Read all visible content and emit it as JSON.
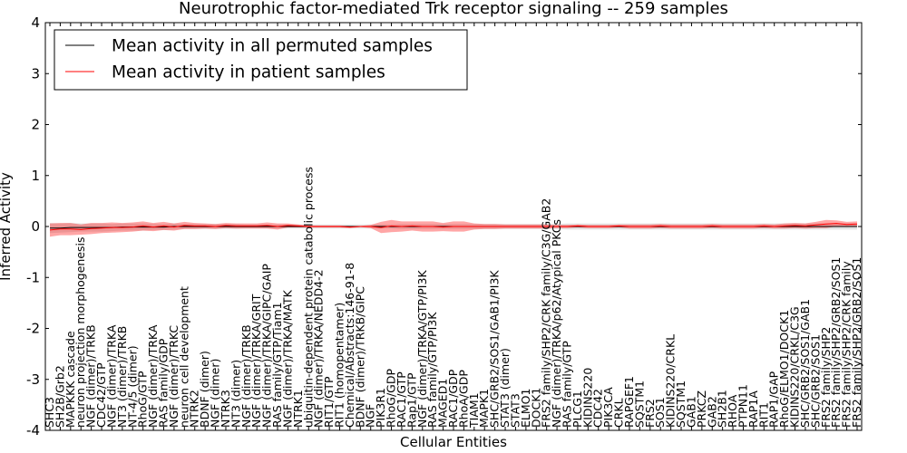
{
  "chart_data": {
    "type": "line",
    "title": "Neurotrophic factor-mediated Trk receptor signaling -- 259 samples",
    "xlabel": "Cellular Entities",
    "ylabel": "Inferred Activity",
    "ylim": [
      -4,
      4
    ],
    "yticks": [
      4,
      3,
      2,
      1,
      0,
      -1,
      -2,
      -3,
      -4
    ],
    "legend_position": "upper-left",
    "grid": false,
    "categories": [
      "SHC3",
      "SH2B/Grb2",
      "MAPKKK cascade",
      "neuron projection morphogenesis",
      "NGF (dimer)/TRKB",
      "CDC42/GTP",
      "NGF (dimer)/TRKA",
      "NT3 (dimer)/TRKB",
      "NT-4/5 (dimer)",
      "RhoG/GTP",
      "NGF (dimer)/TRKA",
      "RAS family/GDP",
      "NGF (dimer)/TRKC",
      "neuron cell development",
      "NTRK2",
      "BDNF (dimer)",
      "NGF (dimer)",
      "NTRK3",
      "NT3 (dimer)",
      "NGF (dimer)/TRKB",
      "NGF (dimer)/TRKA/GRIT",
      "NGF (dimer)/TRKA/GIPC/GAIP",
      "RAS family/GTP/Tiam1",
      "NGF (dimer)/TRKA/MATK",
      "NTRK1",
      "ubiquitin-dependent protein catabolic process",
      "NGF (dimer)/TRKA/NEDD4-2",
      "RIT1/GTP",
      "RIT1 (homopentamer)",
      "Chemical/Abstracts:146-91-8",
      "BDNF (dimer)/TRKB/GIPC",
      "NGF",
      "PIK3R1",
      "RhoG/GDP",
      "RAC1/GTP",
      "Rap1/GTP",
      "NGF (dimer)/TRKA/GTP/PI3K",
      "RAS family/GTP/PI3K",
      "MAGED1",
      "RAC1/GDP",
      "RhoA/GDP",
      "TIAM1",
      "MAPK1",
      "SHC/GRB2/SOS1/GAB1/PI3K",
      "STAT3 (dimer)",
      "STAT3",
      "ELMO1",
      "DOCK1",
      "FRS2 family/SHP2/CRK family/C3G/GAB2",
      "NGF (dimer)/TRKA/p62/Atypical PKCs",
      "RAS family/GTP",
      "PLCG1",
      "KIDINS220",
      "CDC42",
      "PIK3CA",
      "CRKL",
      "RAPGEF1",
      "SQSTM1",
      "FRS2",
      "SOS1",
      "KIDINS220/CRKL",
      "SQSTM1",
      "GAB1",
      "PRKCZ",
      "GAB2",
      "SH2B1",
      "RHOA",
      "PTPN11",
      "RAP1A",
      "RIT1",
      "RAP1/GAP",
      "RhoG/ELMO1/DOCK1",
      "KIDINS220/CRKL/C3G",
      "SHC/GRB2/SOS1/GAB1",
      "SHC/GRB2/SOS1",
      "FRS2 family/SHP2",
      "FRS2 family/SHP2/GRB2/SOS1",
      "FRS2 family/SHP2/CRK family",
      "FRS2 family/SHP2/GRB2/SOS1"
    ],
    "series": [
      {
        "name": "Mean activity in all permuted samples",
        "color": "#000000",
        "values": [
          -0.03,
          -0.03,
          -0.02,
          -0.02,
          -0.02,
          -0.02,
          -0.02,
          -0.01,
          -0.01,
          -0.01,
          -0.01,
          -0.01,
          0.0,
          0.0,
          0.0,
          0.0,
          0.0,
          0.0,
          0.0,
          0.0,
          0.0,
          0.0,
          0.0,
          0.0,
          0.0,
          0.0,
          0.0,
          0.0,
          0.0,
          0.0,
          0.0,
          0.0,
          0.0,
          0.0,
          0.0,
          0.0,
          0.0,
          0.0,
          0.0,
          0.0,
          0.0,
          0.0,
          0.0,
          0.0,
          0.0,
          0.0,
          0.0,
          0.0,
          0.0,
          0.0,
          0.0,
          0.0,
          0.0,
          0.0,
          0.0,
          0.0,
          0.0,
          0.0,
          0.0,
          0.0,
          0.0,
          0.0,
          0.0,
          0.0,
          0.0,
          0.0,
          0.0,
          0.0,
          0.0,
          0.0,
          0.0,
          0.0,
          0.0,
          0.0,
          0.0,
          0.0,
          0.0,
          0.0,
          0.0
        ],
        "band": [
          0.1,
          0.09,
          0.09,
          0.08,
          0.08,
          0.08,
          0.07,
          0.07,
          0.07,
          0.07,
          0.06,
          0.06,
          0.06,
          0.05,
          0.05,
          0.05,
          0.05,
          0.05,
          0.05,
          0.04,
          0.04,
          0.04,
          0.04,
          0.04,
          0.04,
          0.04,
          0.04,
          0.04,
          0.04,
          0.04,
          0.04,
          0.04,
          0.04,
          0.04,
          0.05,
          0.05,
          0.05,
          0.05,
          0.05,
          0.05,
          0.05,
          0.05,
          0.05,
          0.05,
          0.05,
          0.05,
          0.05,
          0.05,
          0.05,
          0.05,
          0.06,
          0.06,
          0.06,
          0.06,
          0.06,
          0.06,
          0.06,
          0.06,
          0.06,
          0.06,
          0.06,
          0.06,
          0.06,
          0.06,
          0.06,
          0.06,
          0.06,
          0.06,
          0.06,
          0.06,
          0.06,
          0.06,
          0.06,
          0.06,
          0.06,
          0.06,
          0.06,
          0.06,
          0.06
        ]
      },
      {
        "name": "Mean activity in patient samples",
        "color": "#ff0000",
        "values": [
          -0.07,
          -0.05,
          -0.05,
          -0.06,
          -0.04,
          -0.03,
          -0.02,
          -0.02,
          -0.01,
          0.01,
          -0.01,
          0.01,
          -0.01,
          0.02,
          0.01,
          0.01,
          0.0,
          0.02,
          0.01,
          0.01,
          0.01,
          0.02,
          0.0,
          0.02,
          0.01,
          0.0,
          0.0,
          0.0,
          0.0,
          -0.01,
          0.0,
          0.0,
          -0.02,
          0.01,
          0.0,
          0.01,
          0.0,
          0.0,
          -0.01,
          0.0,
          0.0,
          0.0,
          0.0,
          0.0,
          0.0,
          0.0,
          0.0,
          0.0,
          0.0,
          0.0,
          0.0,
          0.01,
          0.0,
          0.0,
          0.0,
          0.01,
          0.0,
          0.0,
          0.0,
          0.01,
          0.0,
          0.0,
          0.0,
          0.0,
          0.01,
          0.0,
          0.0,
          0.0,
          0.0,
          0.01,
          0.0,
          0.01,
          0.02,
          0.01,
          0.03,
          0.05,
          0.06,
          0.04,
          0.05
        ],
        "band": [
          0.13,
          0.12,
          0.12,
          0.1,
          0.11,
          0.1,
          0.1,
          0.09,
          0.09,
          0.09,
          0.08,
          0.08,
          0.07,
          0.07,
          0.06,
          0.05,
          0.05,
          0.05,
          0.05,
          0.05,
          0.05,
          0.06,
          0.06,
          0.04,
          0.03,
          0.02,
          0.02,
          0.02,
          0.02,
          0.02,
          0.01,
          0.03,
          0.11,
          0.12,
          0.1,
          0.09,
          0.1,
          0.1,
          0.08,
          0.1,
          0.1,
          0.06,
          0.05,
          0.05,
          0.04,
          0.04,
          0.04,
          0.04,
          0.04,
          0.03,
          0.03,
          0.03,
          0.03,
          0.03,
          0.03,
          0.03,
          0.04,
          0.04,
          0.04,
          0.04,
          0.04,
          0.04,
          0.04,
          0.04,
          0.04,
          0.04,
          0.04,
          0.04,
          0.04,
          0.04,
          0.04,
          0.05,
          0.05,
          0.05,
          0.06,
          0.08,
          0.06,
          0.05,
          0.05
        ]
      }
    ]
  }
}
